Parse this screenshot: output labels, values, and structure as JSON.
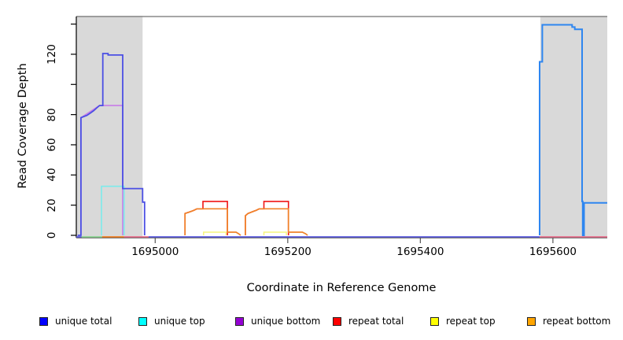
{
  "chart_data": {
    "type": "line",
    "title": "",
    "xlabel": "Coordinate in Reference Genome",
    "ylabel": "Read Coverage Depth",
    "x_axis": {
      "range": [
        1694881,
        1695682
      ],
      "ticks": [
        1695000,
        1695200,
        1695400,
        1695600
      ],
      "tick_labels": [
        "1695000",
        "1695200",
        "1695400",
        "1695600"
      ]
    },
    "y_axis": {
      "range": [
        0,
        145
      ],
      "ticks": [
        0,
        20,
        40,
        60,
        80,
        100,
        120,
        140
      ],
      "tick_labels": [
        "0",
        "20",
        "40",
        "60",
        "80",
        "",
        "120",
        ""
      ]
    },
    "grid": false,
    "background_color": "#ffffff",
    "shaded_region_color": "#d9d9d9",
    "shaded_regions": [
      {
        "from": 1694881,
        "to": 1694981
      },
      {
        "from": 1695581,
        "to": 1695682
      }
    ],
    "series": [
      {
        "name": "unique bottom",
        "legend_color": "#9400D3",
        "segments": [
          {
            "color": "#c77de8",
            "width": 1.6,
            "points": [
              [
                1694888,
                0
              ],
              [
                1694888,
                78
              ],
              [
                1694916,
                86
              ],
              [
                1694951,
                86
              ],
              [
                1694951,
                0
              ]
            ]
          }
        ]
      },
      {
        "name": "unique top",
        "legend_color": "#00FFFF",
        "segments": [
          {
            "color": "#7cebeb",
            "width": 1.6,
            "points": [
              [
                1694919,
                0
              ],
              [
                1694919,
                32.5
              ],
              [
                1694953,
                32.5
              ],
              [
                1694953,
                0
              ]
            ]
          }
        ]
      },
      {
        "name": "repeat total",
        "legend_color": "#FF0000",
        "segments": [
          {
            "color": "#f01414",
            "width": 1.6,
            "points": [
              [
                1695045,
                0
              ],
              [
                1695045,
                14.5
              ],
              [
                1695052,
                15.5
              ],
              [
                1695058,
                16.5
              ],
              [
                1695063,
                17.6
              ],
              [
                1695072,
                17.6
              ],
              [
                1695072,
                22.5
              ],
              [
                1695109,
                22.5
              ],
              [
                1695109,
                0
              ]
            ]
          },
          {
            "color": "#f01414",
            "width": 1.6,
            "points": [
              [
                1695136,
                0
              ],
              [
                1695136,
                13
              ],
              [
                1695140,
                14.5
              ],
              [
                1695146,
                15.5
              ],
              [
                1695149,
                16
              ],
              [
                1695152,
                16.5
              ],
              [
                1695157,
                17.6
              ],
              [
                1695164,
                17.6
              ],
              [
                1695164,
                22.5
              ],
              [
                1695201,
                22.5
              ],
              [
                1695201,
                0
              ]
            ]
          }
        ]
      },
      {
        "name": "repeat top",
        "legend_color": "#FFFF00",
        "segments": [
          {
            "color": "#f6f67e",
            "width": 1.5,
            "points": [
              [
                1695073,
                0
              ],
              [
                1695073,
                2.1
              ],
              [
                1695107,
                2.1
              ],
              [
                1695107,
                0
              ]
            ]
          },
          {
            "color": "#f6f67e",
            "width": 1.5,
            "points": [
              [
                1695164,
                0
              ],
              [
                1695164,
                2.1
              ],
              [
                1695198,
                2.1
              ],
              [
                1695198,
                0
              ]
            ]
          }
        ]
      },
      {
        "name": "repeat bottom",
        "legend_color": "#FFA500",
        "segments": [
          {
            "color": "#f08228",
            "width": 1.7,
            "points": [
              [
                1695045,
                0
              ],
              [
                1695045,
                14.5
              ],
              [
                1695052,
                15.5
              ],
              [
                1695058,
                16.5
              ],
              [
                1695063,
                17.6
              ],
              [
                1695109,
                17.6
              ],
              [
                1695109,
                2.1
              ],
              [
                1695122,
                2.1
              ],
              [
                1695126,
                1
              ],
              [
                1695129,
                0
              ]
            ]
          },
          {
            "color": "#f08228",
            "width": 1.7,
            "points": [
              [
                1695136,
                0
              ],
              [
                1695136,
                13
              ],
              [
                1695140,
                14.5
              ],
              [
                1695146,
                15.5
              ],
              [
                1695149,
                16
              ],
              [
                1695152,
                16.5
              ],
              [
                1695157,
                17.6
              ],
              [
                1695201,
                17.6
              ],
              [
                1695201,
                2.1
              ],
              [
                1695222,
                2.1
              ],
              [
                1695227,
                1
              ],
              [
                1695230,
                0
              ]
            ]
          }
        ]
      },
      {
        "name": "unique total",
        "legend_color": "#0000FF",
        "segments": [
          {
            "color": "#4b4fe4",
            "width": 1.8,
            "points": [
              [
                1694883,
                0
              ],
              [
                1694888,
                0
              ],
              [
                1694888,
                78
              ],
              [
                1694897,
                79.5
              ],
              [
                1694902,
                81
              ],
              [
                1694907,
                82.5
              ],
              [
                1694912,
                84.5
              ],
              [
                1694916,
                86
              ],
              [
                1694921,
                86
              ],
              [
                1694921,
                120.5
              ],
              [
                1694929,
                120.5
              ],
              [
                1694929,
                119.5
              ],
              [
                1694951,
                119.5
              ],
              [
                1694951,
                31
              ],
              [
                1694981,
                31
              ],
              [
                1694981,
                22
              ],
              [
                1694984,
                22
              ],
              [
                1694984,
                0
              ]
            ]
          },
          {
            "color": "#2e86f0",
            "width": 2.0,
            "points": [
              [
                1695580,
                0
              ],
              [
                1695580,
                115
              ],
              [
                1695584,
                115
              ],
              [
                1695584,
                139.5
              ],
              [
                1695629,
                139.5
              ],
              [
                1695629,
                138
              ],
              [
                1695633,
                138
              ],
              [
                1695633,
                136.5
              ],
              [
                1695644,
                136.5
              ],
              [
                1695644,
                22.5
              ],
              [
                1695645,
                22.5
              ],
              [
                1695645,
                0
              ],
              [
                1695647,
                0
              ],
              [
                1695647,
                21.5
              ],
              [
                1695682,
                21.5
              ]
            ]
          }
        ]
      }
    ],
    "zero_line_segments": [
      {
        "color": "#5f5fe0",
        "from": 1694881,
        "to": 1694889
      },
      {
        "color": "#8fd694",
        "from": 1694889,
        "to": 1694920
      },
      {
        "color": "#f08228",
        "from": 1694920,
        "to": 1694953
      },
      {
        "color": "#e8708e",
        "from": 1694953,
        "to": 1694990
      },
      {
        "color": "#5f5fe0",
        "from": 1694990,
        "to": 1695580
      },
      {
        "color": "#e8708e",
        "from": 1695580,
        "to": 1695682
      }
    ],
    "legend_position": "bottom"
  },
  "legend": {
    "items": [
      {
        "label": "unique total",
        "color": "#0000FF"
      },
      {
        "label": "unique top",
        "color": "#00FFFF"
      },
      {
        "label": "unique bottom",
        "color": "#9400D3"
      },
      {
        "label": "repeat total",
        "color": "#FF0000"
      },
      {
        "label": "repeat top",
        "color": "#FFFF00"
      },
      {
        "label": "repeat bottom",
        "color": "#FFA500"
      }
    ]
  }
}
